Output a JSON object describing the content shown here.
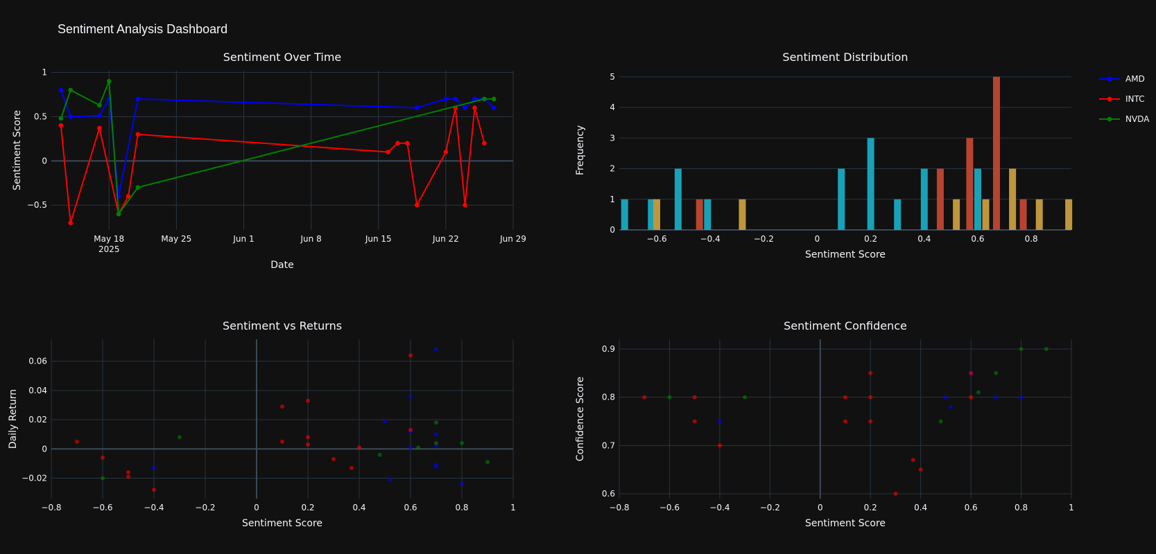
{
  "dashboard": {
    "title": "Sentiment Analysis Dashboard"
  },
  "colors": {
    "AMD": "#0000ff",
    "INTC": "#ff0000",
    "NVDA": "#008000",
    "hist_AMD": "#17a2b8",
    "hist_INTC": "#b8432f",
    "hist_NVDA": "#c0963c",
    "grid": "#283442",
    "zeroline": "#3b4a5a",
    "background": "#111111"
  },
  "legend": {
    "placement": "top-right",
    "entries": [
      "AMD",
      "INTC",
      "NVDA"
    ]
  },
  "chart_data": [
    {
      "id": "time",
      "type": "line",
      "title": "Sentiment Over Time",
      "xlabel": "Date",
      "ylabel": "Sentiment Score",
      "xlim": [
        "2025-05-12",
        "2025-06-29"
      ],
      "ylim": [
        -0.78,
        1.02
      ],
      "yticks": [
        1,
        0.5,
        0,
        -0.5
      ],
      "ytick_labels": [
        "1",
        "0.5",
        "0",
        "−0.5"
      ],
      "xticks": [
        "2025-05-18",
        "2025-05-25",
        "2025-06-01",
        "2025-06-08",
        "2025-06-15",
        "2025-06-22",
        "2025-06-29"
      ],
      "xtick_labels": [
        "May 18",
        "May 25",
        "Jun 1",
        "Jun 8",
        "Jun 15",
        "Jun 22",
        "Jun 29"
      ],
      "xtick_sublabel": "2025",
      "grid": true,
      "series": [
        {
          "name": "AMD",
          "x": [
            "2025-05-13",
            "2025-05-14",
            "2025-05-17",
            "2025-05-18",
            "2025-05-19",
            "2025-05-21",
            "2025-06-19",
            "2025-06-22",
            "2025-06-23",
            "2025-06-24",
            "2025-06-25",
            "2025-06-26",
            "2025-06-27"
          ],
          "y": [
            0.8,
            0.5,
            0.51,
            0.7,
            -0.4,
            0.7,
            0.6,
            0.7,
            0.7,
            0.6,
            0.7,
            0.7,
            0.6
          ]
        },
        {
          "name": "INTC",
          "x": [
            "2025-05-13",
            "2025-05-14",
            "2025-05-17",
            "2025-05-19",
            "2025-05-20",
            "2025-05-21",
            "2025-06-16",
            "2025-06-17",
            "2025-06-18",
            "2025-06-19",
            "2025-06-22",
            "2025-06-23",
            "2025-06-24",
            "2025-06-25",
            "2025-06-26"
          ],
          "y": [
            0.4,
            -0.7,
            0.37,
            -0.6,
            -0.4,
            0.3,
            0.1,
            0.2,
            0.2,
            -0.5,
            0.1,
            0.6,
            -0.5,
            0.6,
            0.2
          ]
        },
        {
          "name": "NVDA",
          "x": [
            "2025-05-13",
            "2025-05-14",
            "2025-05-17",
            "2025-05-18",
            "2025-05-19",
            "2025-05-21",
            "2025-06-26",
            "2025-06-27"
          ],
          "y": [
            0.48,
            0.8,
            0.63,
            0.9,
            -0.6,
            -0.3,
            0.7,
            0.7
          ]
        }
      ]
    },
    {
      "id": "hist",
      "type": "bar",
      "title": "Sentiment Distribution",
      "xlabel": "Sentiment Score",
      "ylabel": "Frequency",
      "xlim": [
        -0.74,
        0.95
      ],
      "ylim": [
        0,
        5.2
      ],
      "yticks": [
        0,
        1,
        2,
        3,
        4,
        5
      ],
      "ytick_labels": [
        "0",
        "1",
        "2",
        "3",
        "4",
        "5"
      ],
      "xticks": [
        -0.6,
        -0.4,
        -0.2,
        0,
        0.2,
        0.4,
        0.6,
        0.8
      ],
      "xtick_labels": [
        "−0.6",
        "−0.4",
        "−0.2",
        "0",
        "0.2",
        "0.4",
        "0.6",
        "0.8"
      ],
      "series": [
        {
          "name": "AMD",
          "x": [
            -0.72,
            -0.62,
            -0.52,
            -0.41,
            0.09,
            0.2,
            0.3,
            0.4,
            0.6
          ],
          "values": [
            1,
            1,
            2,
            1,
            2,
            3,
            1,
            2,
            2
          ]
        },
        {
          "name": "INTC",
          "x": [
            -0.44,
            0.46,
            0.57,
            0.67,
            0.77
          ],
          "values": [
            1,
            2,
            3,
            5,
            1
          ]
        },
        {
          "name": "NVDA",
          "x": [
            -0.6,
            -0.28,
            0.52,
            0.63,
            0.73,
            0.83,
            0.94
          ],
          "values": [
            1,
            1,
            1,
            1,
            2,
            1,
            1
          ]
        }
      ]
    },
    {
      "id": "returns",
      "type": "scatter",
      "title": "Sentiment vs Returns",
      "xlabel": "Sentiment Score",
      "ylabel": "Daily Return",
      "xlim": [
        -0.8,
        1.0
      ],
      "ylim": [
        -0.034,
        0.075
      ],
      "yticks": [
        0.06,
        0.04,
        0.02,
        0,
        -0.02
      ],
      "ytick_labels": [
        "0.06",
        "0.04",
        "0.02",
        "0",
        "−0.02"
      ],
      "xticks": [
        -0.8,
        -0.6,
        -0.4,
        -0.2,
        0,
        0.2,
        0.4,
        0.6,
        0.8,
        1
      ],
      "xtick_labels": [
        "−0.8",
        "−0.6",
        "−0.4",
        "−0.2",
        "0",
        "0.2",
        "0.4",
        "0.6",
        "0.8",
        "1"
      ],
      "series": [
        {
          "name": "AMD",
          "x": [
            0.7,
            0.6,
            0.5,
            0.7,
            0.6,
            0.7,
            0.6,
            0.7,
            0.7,
            0.52,
            0.8,
            -0.4
          ],
          "y": [
            0.068,
            0.036,
            0.019,
            0.01,
            0.012,
            0.002,
            0.001,
            -0.011,
            -0.012,
            -0.021,
            -0.024,
            -0.013
          ]
        },
        {
          "name": "INTC",
          "x": [
            0.6,
            0.2,
            0.1,
            0.6,
            0.2,
            0.1,
            0.2,
            0.4,
            0.3,
            0.37,
            -0.7,
            -0.6,
            -0.5,
            -0.5,
            -0.4
          ],
          "y": [
            0.064,
            0.033,
            0.029,
            0.013,
            0.008,
            0.005,
            0.003,
            0.001,
            -0.007,
            -0.013,
            0.005,
            -0.006,
            -0.016,
            -0.019,
            -0.028
          ]
        },
        {
          "name": "NVDA",
          "x": [
            0.7,
            0.7,
            0.8,
            0.63,
            0.48,
            0.9,
            -0.3,
            -0.6
          ],
          "y": [
            0.018,
            0.004,
            0.004,
            0.001,
            -0.004,
            -0.009,
            0.008,
            -0.02
          ]
        }
      ]
    },
    {
      "id": "confidence",
      "type": "scatter",
      "title": "Sentiment Confidence",
      "xlabel": "Sentiment Score",
      "ylabel": "Confidence Score",
      "xlim": [
        -0.8,
        1.0
      ],
      "ylim": [
        0.59,
        0.92
      ],
      "yticks": [
        0.9,
        0.8,
        0.7,
        0.6
      ],
      "ytick_labels": [
        "0.9",
        "0.8",
        "0.7",
        "0.6"
      ],
      "xticks": [
        -0.8,
        -0.6,
        -0.4,
        -0.2,
        0,
        0.2,
        0.4,
        0.6,
        0.8,
        1
      ],
      "xtick_labels": [
        "−0.8",
        "−0.6",
        "−0.4",
        "−0.2",
        "0",
        "0.2",
        "0.4",
        "0.6",
        "0.8",
        "1"
      ],
      "series": [
        {
          "name": "AMD",
          "x": [
            0.5,
            0.52,
            0.6,
            0.7,
            0.8,
            -0.4
          ],
          "y": [
            0.8,
            0.78,
            0.85,
            0.8,
            0.8,
            0.75
          ]
        },
        {
          "name": "INTC",
          "x": [
            -0.7,
            -0.5,
            -0.5,
            -0.4,
            0.1,
            0.1,
            0.2,
            0.2,
            0.2,
            0.3,
            0.37,
            0.4,
            0.6,
            0.6
          ],
          "y": [
            0.8,
            0.8,
            0.75,
            0.7,
            0.8,
            0.75,
            0.85,
            0.8,
            0.75,
            0.6,
            0.67,
            0.65,
            0.8,
            0.85
          ]
        },
        {
          "name": "NVDA",
          "x": [
            -0.6,
            -0.3,
            0.48,
            0.63,
            0.7,
            0.8,
            0.9
          ],
          "y": [
            0.8,
            0.8,
            0.75,
            0.81,
            0.85,
            0.9,
            0.9
          ]
        }
      ]
    }
  ]
}
